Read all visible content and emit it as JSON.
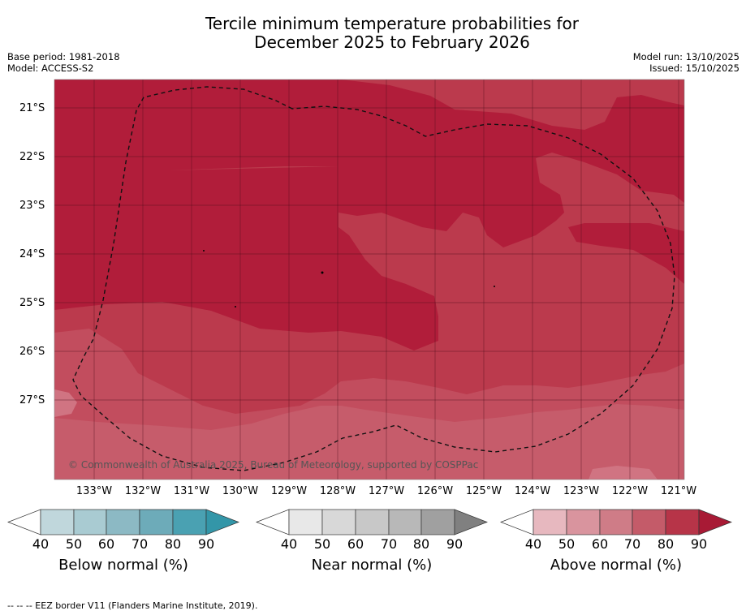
{
  "title_line1": "Tercile minimum temperature probabilities for",
  "title_line2": "December 2025 to February 2026",
  "meta": {
    "base_period": "Base period: 1981-2018",
    "model": "Model: ACCESS-S2",
    "model_run": "Model run: 13/10/2025",
    "issued": "Issued: 15/10/2025"
  },
  "map": {
    "lat_labels": [
      "21°S",
      "22°S",
      "23°S",
      "24°S",
      "25°S",
      "26°S",
      "27°S"
    ],
    "lon_labels": [
      "133°W",
      "132°W",
      "131°W",
      "130°W",
      "129°W",
      "128°W",
      "127°W",
      "126°W",
      "125°W",
      "124°W",
      "123°W",
      "122°W",
      "121°W"
    ],
    "copyright": "© Commonwealth of Australia 2025, Bureau of Meteorology, supported by COSPPac"
  },
  "colorbars": [
    {
      "label": "Below normal (%)",
      "ticks": [
        "40",
        "50",
        "60",
        "70",
        "80",
        "90"
      ],
      "colors": [
        "#c0d7dc",
        "#a9cbd2",
        "#8cb9c4",
        "#6dabb9",
        "#4aa1b2",
        "#3396a8"
      ]
    },
    {
      "label": "Near normal (%)",
      "ticks": [
        "40",
        "50",
        "60",
        "70",
        "80",
        "90"
      ],
      "colors": [
        "#e8e8e8",
        "#d8d8d8",
        "#c8c8c8",
        "#b8b8b8",
        "#a0a0a0",
        "#808080"
      ]
    },
    {
      "label": "Above normal (%)",
      "ticks": [
        "40",
        "50",
        "60",
        "70",
        "80",
        "90"
      ],
      "colors": [
        "#e7b8bf",
        "#d9949e",
        "#cf7c87",
        "#c45b69",
        "#b73448",
        "#a81a35"
      ]
    }
  ],
  "footer": "--  --  -- EEZ border V11 (Flanders Marine Institute, 2019)."
}
